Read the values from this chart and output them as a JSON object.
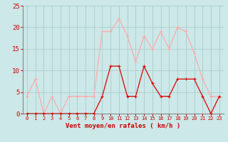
{
  "hours": [
    0,
    1,
    2,
    3,
    4,
    5,
    6,
    7,
    8,
    9,
    10,
    11,
    12,
    13,
    14,
    15,
    16,
    17,
    18,
    19,
    20,
    21,
    22,
    23
  ],
  "rafales": [
    4,
    8,
    0,
    4,
    0,
    4,
    4,
    4,
    4,
    19,
    19,
    22,
    18,
    12,
    18,
    15,
    19,
    15,
    20,
    19,
    14,
    8,
    4,
    4
  ],
  "vent_moyen": [
    0,
    0,
    0,
    0,
    0,
    0,
    0,
    0,
    0,
    4,
    11,
    11,
    4,
    4,
    11,
    7,
    4,
    4,
    8,
    8,
    8,
    4,
    0,
    4
  ],
  "color_rafales": "#ffaaaa",
  "color_vent": "#dd0000",
  "bg_color": "#cce8e8",
  "grid_color": "#aacccc",
  "xlabel": "Vent moyen/en rafales ( km/h )",
  "xlabel_color": "#cc0000",
  "tick_color": "#cc0000",
  "axis_line_color": "#888888",
  "ylim": [
    0,
    25
  ],
  "yticks": [
    0,
    5,
    10,
    15,
    20,
    25
  ],
  "ytick_labels": [
    "0",
    "5",
    "10",
    "15",
    "20",
    "25"
  ]
}
